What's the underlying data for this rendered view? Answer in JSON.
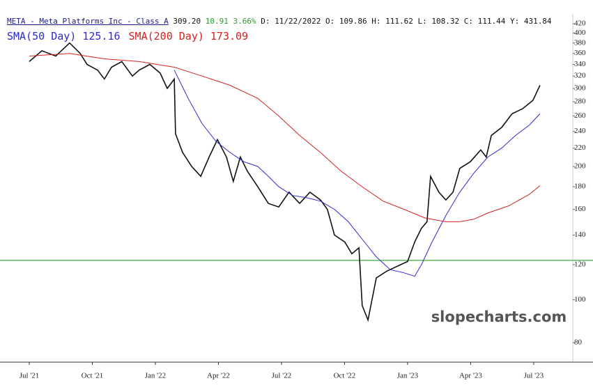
{
  "chart_data": {
    "type": "line",
    "title": "META - Meta Platforms Inc - Class A",
    "quote": {
      "last": "309.20",
      "change": "10.91",
      "change_pct": "3.66%",
      "date": "D: 11/22/2022",
      "open": "O: 109.86",
      "high": "H: 111.62",
      "low": "L: 108.32",
      "close": "C: 111.44",
      "year_high": "Y: 431.84"
    },
    "watermark": "slopecharts.com",
    "log_scale": true,
    "ylim": [
      72.3,
      442
    ],
    "yticks": [
      80,
      100,
      120,
      140,
      160,
      180,
      200,
      220,
      240,
      260,
      280,
      300,
      320,
      340,
      360,
      380,
      400,
      420
    ],
    "xlim": [
      2021.384,
      2023.655
    ],
    "xticks": [
      {
        "value": 2021.5,
        "label": "Jul '21"
      },
      {
        "value": 2021.75,
        "label": "Oct '21"
      },
      {
        "value": 2022.0,
        "label": "Jan '22"
      },
      {
        "value": 2022.25,
        "label": "Apr '22"
      },
      {
        "value": 2022.5,
        "label": "Jul '22"
      },
      {
        "value": 2022.75,
        "label": "Oct '22"
      },
      {
        "value": 2023.0,
        "label": "Jan '23"
      },
      {
        "value": 2023.25,
        "label": "Apr '23"
      },
      {
        "value": 2023.5,
        "label": "Jul '23"
      }
    ],
    "hline": {
      "value": 122.7,
      "color": "#5cb85c"
    },
    "series": [
      {
        "name": "META",
        "color": "#111111",
        "x": [
          2021.5,
          2021.55,
          2021.605,
          2021.66,
          2021.702,
          2021.729,
          2021.771,
          2021.798,
          2021.826,
          2021.867,
          2021.909,
          2021.936,
          2021.978,
          2022.019,
          2022.047,
          2022.075,
          2022.08,
          2022.108,
          2022.144,
          2022.18,
          2022.213,
          2022.246,
          2022.282,
          2022.309,
          2022.337,
          2022.365,
          2022.406,
          2022.448,
          2022.489,
          2022.53,
          2022.572,
          2022.613,
          2022.655,
          2022.682,
          2022.71,
          2022.751,
          2022.779,
          2022.807,
          2022.82,
          2022.843,
          2022.876,
          2022.917,
          2022.945,
          2022.972,
          2023.0,
          2023.028,
          2023.055,
          2023.077,
          2023.091,
          2023.124,
          2023.152,
          2023.18,
          2023.207,
          2023.249,
          2023.29,
          2023.312,
          2023.332,
          2023.373,
          2023.414,
          2023.456,
          2023.497,
          2023.525
        ],
        "values": [
          345,
          365,
          355,
          380,
          360,
          340,
          330,
          315,
          335,
          345,
          320,
          330,
          340,
          325,
          300,
          315,
          237,
          215,
          200,
          190,
          210,
          230,
          210,
          185,
          210,
          195,
          180,
          165,
          162,
          175,
          165,
          175,
          168,
          160,
          140,
          135,
          127,
          131,
          97,
          90,
          112,
          116,
          118,
          120,
          122,
          135,
          145,
          150,
          190,
          175,
          168,
          175,
          198,
          205,
          218,
          210,
          235,
          245,
          263,
          270,
          282,
          305
        ]
      },
      {
        "name": "SMA(50 Day)",
        "legend_value": "125.16",
        "color": "#2b2bd0",
        "x": [
          2022.075,
          2022.13,
          2022.185,
          2022.24,
          2022.296,
          2022.351,
          2022.406,
          2022.448,
          2022.489,
          2022.544,
          2022.599,
          2022.655,
          2022.71,
          2022.765,
          2022.82,
          2022.876,
          2022.931,
          2022.986,
          2023.028,
          2023.055,
          2023.097,
          2023.152,
          2023.207,
          2023.262,
          2023.318,
          2023.373,
          2023.428,
          2023.483,
          2023.525
        ],
        "values": [
          330,
          285,
          250,
          228,
          215,
          205,
          200,
          190,
          180,
          172,
          170,
          167,
          160,
          150,
          137,
          125,
          117,
          115,
          113,
          120,
          135,
          155,
          175,
          193,
          210,
          220,
          235,
          248,
          263
        ]
      },
      {
        "name": "SMA(200 Day)",
        "legend_value": "173.09",
        "color": "#d42020",
        "x": [
          2021.5,
          2021.66,
          2021.798,
          2021.936,
          2022.075,
          2022.185,
          2022.296,
          2022.406,
          2022.489,
          2022.572,
          2022.655,
          2022.737,
          2022.82,
          2022.903,
          2022.986,
          2023.069,
          2023.152,
          2023.207,
          2023.262,
          2023.318,
          2023.401,
          2023.483,
          2023.525
        ],
        "values": [
          355,
          360,
          350,
          345,
          335,
          320,
          305,
          285,
          260,
          235,
          215,
          195,
          180,
          167,
          160,
          153,
          150,
          150,
          152,
          157,
          163,
          173,
          181
        ]
      }
    ]
  }
}
